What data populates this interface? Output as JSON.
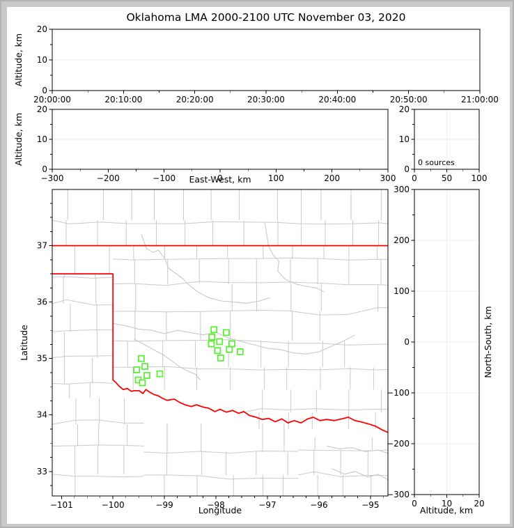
{
  "title": "Oklahoma LMA 2000-2100 UTC November 03, 2020",
  "annotations": {
    "sources_label": "0 sources"
  },
  "axis_labels": {
    "altitude": "Altitude, km",
    "east_west": "East-West, km",
    "latitude": "Latitude",
    "longitude": "Longitude",
    "north_south": "North-South, km"
  },
  "colors": {
    "figure_bg": "#ffffff",
    "window_bg": "#c9c9c9",
    "axis": "#000000",
    "grid": "#ececec",
    "county": "#c9c9c9",
    "river": "#c9c9c9",
    "state_boundary": "#ff0000",
    "station": "#53f02c",
    "station_fill": "#ffffff"
  },
  "panels": {
    "time_height": {
      "xlim": [
        0,
        3600
      ],
      "x_major": [
        0,
        600,
        1200,
        1800,
        2400,
        3000,
        3600
      ],
      "x_labels": [
        "20:00:00",
        "20:10:00",
        "20:20:00",
        "20:30:00",
        "20:40:00",
        "20:50:00",
        "21:00:00"
      ],
      "x_minor": [
        300,
        900,
        1500,
        2100,
        2700,
        3300
      ],
      "ylim": [
        0,
        20
      ],
      "y_major": [
        0,
        10,
        20
      ],
      "y_labels": [
        "0",
        "10",
        "20"
      ],
      "y_minor": [
        5,
        15
      ],
      "grid_y": [
        10
      ],
      "ylabel": "Altitude, km"
    },
    "east_west": {
      "xlim": [
        -300,
        300
      ],
      "x_major": [
        -300,
        -200,
        -100,
        0,
        100,
        200,
        300
      ],
      "x_labels": [
        "−300",
        "−200",
        "−100",
        "0",
        "100",
        "200",
        "300"
      ],
      "x_minor": [
        -250,
        -150,
        -50,
        50,
        150,
        250
      ],
      "ylim": [
        0,
        20
      ],
      "y_major": [
        0,
        10,
        20
      ],
      "y_labels": [
        "0",
        "10",
        "20"
      ],
      "y_minor": [
        5,
        15
      ],
      "grid_y": [
        10
      ],
      "xlabel": "East-West, km",
      "ylabel": "Altitude, km"
    },
    "histogram": {
      "xlim": [
        0,
        100
      ],
      "x_major": [
        0,
        50,
        100
      ],
      "x_labels": [
        "0",
        "50",
        "100"
      ],
      "x_minor": [
        25,
        75
      ],
      "ylim": [
        0,
        20
      ],
      "y_major": [
        0,
        10,
        20
      ],
      "y_labels": [
        "0",
        "10",
        "20"
      ],
      "y_minor": [
        5,
        15
      ],
      "grid_y": [
        10
      ],
      "grid_x": [
        50
      ],
      "annotation": "0 sources"
    },
    "plan_view": {
      "xlim": [
        -101.18,
        -94.66
      ],
      "x_major": [
        -101,
        -100,
        -99,
        -98,
        -97,
        -96,
        -95
      ],
      "x_labels": [
        "−101",
        "−100",
        "−99",
        "−98",
        "−97",
        "−96",
        "−95"
      ],
      "x_minor_step": 0.25,
      "ylim": [
        32.565,
        37.995
      ],
      "y_major": [
        33,
        34,
        35,
        36,
        37
      ],
      "y_labels": [
        "33",
        "34",
        "35",
        "36",
        "37"
      ],
      "y_minor_step": 0.25,
      "xlabel": "Longitude",
      "ylabel": "Latitude"
    },
    "north_south": {
      "xlim": [
        0,
        20
      ],
      "x_major": [
        0,
        10,
        20
      ],
      "x_labels": [
        "0",
        "10",
        "20"
      ],
      "x_minor": [
        5,
        15
      ],
      "ylim": [
        -300,
        300
      ],
      "y_major": [
        -300,
        -200,
        -100,
        0,
        100,
        200,
        300
      ],
      "y_labels": [
        "−300",
        "−200",
        "−100",
        "0",
        "100",
        "200",
        "300"
      ],
      "y_minor_step": 50,
      "grid_y": [
        -200,
        -100,
        0,
        100,
        200
      ],
      "grid_x": [
        10
      ],
      "xlabel": "Altitude, km",
      "ylabel": "North-South, km"
    }
  },
  "chart_data": {
    "type": "scatter",
    "title": "Oklahoma LMA 2000-2100 UTC November 03, 2020",
    "source_count": 0,
    "sources_annotation": "0 sources",
    "lightning_sources": [],
    "stations_lon_lat": [
      [
        -98.04,
        35.51
      ],
      [
        -97.8,
        35.46
      ],
      [
        -98.08,
        35.38
      ],
      [
        -97.93,
        35.3
      ],
      [
        -98.09,
        35.26
      ],
      [
        -97.69,
        35.26
      ],
      [
        -97.74,
        35.16
      ],
      [
        -97.97,
        35.14
      ],
      [
        -97.53,
        35.12
      ],
      [
        -97.91,
        35.01
      ],
      [
        -99.45,
        35.0
      ],
      [
        -99.38,
        34.86
      ],
      [
        -99.54,
        34.8
      ],
      [
        -99.34,
        34.7
      ],
      [
        -99.09,
        34.73
      ],
      [
        -99.51,
        34.62
      ],
      [
        -99.43,
        34.57
      ]
    ],
    "legend_position": "none",
    "grid": "faint-major-ticks"
  },
  "map_layers": {
    "north_border": [
      [
        -101.18,
        37.0
      ],
      [
        -94.66,
        37.0
      ]
    ],
    "west_south_border": [
      [
        -101.18,
        36.5
      ],
      [
        -100.0,
        36.5
      ],
      [
        -100.0,
        34.62
      ],
      [
        -99.95,
        34.58
      ],
      [
        -99.88,
        34.51
      ],
      [
        -99.8,
        34.45
      ],
      [
        -99.72,
        34.47
      ],
      [
        -99.65,
        34.42
      ],
      [
        -99.58,
        34.43
      ],
      [
        -99.49,
        34.43
      ],
      [
        -99.42,
        34.38
      ],
      [
        -99.36,
        34.45
      ],
      [
        -99.28,
        34.4
      ],
      [
        -99.2,
        34.36
      ],
      [
        -99.12,
        34.34
      ],
      [
        -99.05,
        34.3
      ],
      [
        -98.95,
        34.26
      ],
      [
        -98.81,
        34.28
      ],
      [
        -98.7,
        34.22
      ],
      [
        -98.6,
        34.18
      ],
      [
        -98.48,
        34.15
      ],
      [
        -98.38,
        34.18
      ],
      [
        -98.25,
        34.14
      ],
      [
        -98.14,
        34.12
      ],
      [
        -98.02,
        34.06
      ],
      [
        -97.92,
        34.1
      ],
      [
        -97.8,
        34.05
      ],
      [
        -97.68,
        34.08
      ],
      [
        -97.56,
        34.03
      ],
      [
        -97.46,
        34.06
      ],
      [
        -97.35,
        33.99
      ],
      [
        -97.22,
        33.96
      ],
      [
        -97.1,
        33.92
      ],
      [
        -96.98,
        33.94
      ],
      [
        -96.85,
        33.88
      ],
      [
        -96.72,
        33.93
      ],
      [
        -96.6,
        33.86
      ],
      [
        -96.48,
        33.9
      ],
      [
        -96.35,
        33.86
      ],
      [
        -96.22,
        33.93
      ],
      [
        -96.11,
        33.96
      ],
      [
        -95.98,
        33.9
      ],
      [
        -95.85,
        33.92
      ],
      [
        -95.7,
        33.9
      ],
      [
        -95.56,
        33.93
      ],
      [
        -95.43,
        33.96
      ],
      [
        -95.3,
        33.9
      ],
      [
        -95.15,
        33.87
      ],
      [
        -95.03,
        33.84
      ],
      [
        -94.9,
        33.8
      ],
      [
        -94.78,
        33.74
      ],
      [
        -94.66,
        33.69
      ]
    ],
    "rivers": [
      [
        [
          -99.45,
          37.2
        ],
        [
          -99.35,
          36.95
        ],
        [
          -99.22,
          36.88
        ],
        [
          -99.12,
          36.92
        ],
        [
          -99.0,
          36.78
        ],
        [
          -98.92,
          36.6
        ],
        [
          -98.8,
          36.52
        ],
        [
          -98.65,
          36.42
        ],
        [
          -98.52,
          36.3
        ],
        [
          -98.35,
          36.18
        ],
        [
          -98.15,
          36.08
        ],
        [
          -97.9,
          36.02
        ],
        [
          -97.65,
          36.0
        ],
        [
          -97.4,
          35.98
        ],
        [
          -97.15,
          36.02
        ],
        [
          -96.95,
          36.08
        ]
      ],
      [
        [
          -97.05,
          37.4
        ],
        [
          -96.98,
          37.0
        ],
        [
          -96.9,
          36.85
        ],
        [
          -96.78,
          36.72
        ],
        [
          -96.8,
          36.55
        ],
        [
          -96.65,
          36.4
        ],
        [
          -96.45,
          36.32
        ],
        [
          -96.25,
          36.28
        ],
        [
          -96.05,
          36.25
        ],
        [
          -95.9,
          36.18
        ]
      ],
      [
        [
          -100.0,
          35.62
        ],
        [
          -99.75,
          35.58
        ],
        [
          -99.5,
          35.52
        ],
        [
          -99.25,
          35.5
        ],
        [
          -99.0,
          35.44
        ],
        [
          -98.75,
          35.5
        ],
        [
          -98.5,
          35.46
        ],
        [
          -98.25,
          35.42
        ],
        [
          -98.0,
          35.46
        ],
        [
          -97.75,
          35.36
        ],
        [
          -97.5,
          35.3
        ],
        [
          -97.25,
          35.24
        ],
        [
          -97.0,
          35.18
        ],
        [
          -96.75,
          35.16
        ],
        [
          -96.5,
          35.1
        ],
        [
          -96.25,
          35.08
        ],
        [
          -96.0,
          35.12
        ],
        [
          -95.75,
          35.22
        ],
        [
          -95.5,
          35.32
        ],
        [
          -95.3,
          35.42
        ]
      ],
      [
        [
          -99.6,
          35.35
        ],
        [
          -99.4,
          35.25
        ],
        [
          -99.2,
          35.15
        ],
        [
          -99.0,
          35.05
        ],
        [
          -98.85,
          34.95
        ],
        [
          -98.7,
          34.85
        ],
        [
          -98.55,
          34.78
        ],
        [
          -98.4,
          34.72
        ],
        [
          -98.3,
          34.62
        ]
      ],
      [
        [
          -95.85,
          33.45
        ],
        [
          -95.6,
          33.4
        ],
        [
          -95.35,
          33.42
        ],
        [
          -95.1,
          33.35
        ],
        [
          -94.85,
          33.38
        ],
        [
          -94.66,
          33.32
        ]
      ],
      [
        [
          -95.75,
          33.05
        ],
        [
          -95.5,
          32.95
        ],
        [
          -95.3,
          33.0
        ],
        [
          -95.05,
          32.9
        ],
        [
          -94.85,
          32.95
        ],
        [
          -94.66,
          32.85
        ]
      ]
    ],
    "county_mesh_regions": [
      {
        "lon": [
          -101.18,
          -94.66
        ],
        "lat": [
          37.0,
          37.99
        ],
        "dlon": 0.54,
        "dlat": 0.5
      },
      {
        "lon": [
          -101.18,
          -100.0
        ],
        "lat": [
          36.5,
          37.0
        ],
        "dlon": 0.6,
        "dlat": 0.55
      },
      {
        "lon": [
          -100.0,
          -94.66
        ],
        "lat": [
          34.45,
          37.0
        ],
        "dlon": 0.56,
        "dlat": 0.47
      },
      {
        "lon": [
          -97.5,
          -94.66
        ],
        "lat": [
          33.75,
          34.45
        ],
        "dlon": 0.58,
        "dlat": 0.48
      },
      {
        "lon": [
          -101.18,
          -100.0
        ],
        "lat": [
          34.3,
          36.5
        ],
        "dlon": 0.47,
        "dlat": 0.44
      },
      {
        "lon": [
          -101.18,
          -99.4
        ],
        "lat": [
          32.56,
          34.3
        ],
        "dlon": 0.52,
        "dlat": 0.45
      },
      {
        "lon": [
          -99.4,
          -96.4
        ],
        "lat": [
          32.56,
          33.85
        ],
        "dlon": 0.55,
        "dlat": 0.45
      },
      {
        "lon": [
          -96.4,
          -94.66
        ],
        "lat": [
          32.56,
          33.6
        ],
        "dlon": 0.52,
        "dlat": 0.42
      }
    ]
  }
}
